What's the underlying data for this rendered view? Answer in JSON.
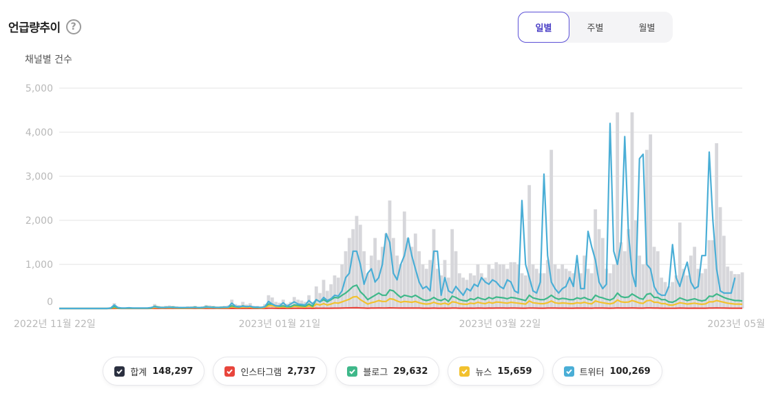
{
  "header": {
    "title": "언급량추이",
    "help_symbol": "?"
  },
  "period_tabs": [
    {
      "label": "일별",
      "active": true
    },
    {
      "label": "주별",
      "active": false
    },
    {
      "label": "월별",
      "active": false
    }
  ],
  "legend": [
    {
      "name": "합계",
      "value": "148,297",
      "color": "#2b3040"
    },
    {
      "name": "인스타그램",
      "value": "2,737",
      "color": "#e8453c"
    },
    {
      "name": "블로그",
      "value": "29,632",
      "color": "#3fb88a"
    },
    {
      "name": "뉴스",
      "value": "15,659",
      "color": "#f2c12e"
    },
    {
      "name": "트위터",
      "value": "100,269",
      "color": "#4aaed6"
    }
  ],
  "chart_data": {
    "type": "line",
    "title": "채널별 건수",
    "ylim": [
      0,
      5000
    ],
    "yticks": [
      0,
      1000,
      2000,
      3000,
      4000,
      5000
    ],
    "ytick_labels": [
      "0",
      "1,000",
      "2,000",
      "3,000",
      "4,000",
      "5,000"
    ],
    "x_labels": [
      "2022년 11월 22일",
      "2023년 01월 21일",
      "2023년 03월 22일",
      "2023년 05월"
    ],
    "x_label_index": [
      0,
      60,
      120,
      180
    ],
    "series": [
      {
        "name": "합계",
        "kind": "bar",
        "color": "#d7d7db",
        "values": [
          0,
          0,
          0,
          0,
          0,
          0,
          0,
          0,
          0,
          0,
          0,
          0,
          0,
          0,
          30,
          120,
          40,
          25,
          20,
          30,
          25,
          20,
          20,
          20,
          20,
          30,
          100,
          60,
          50,
          60,
          70,
          60,
          50,
          40,
          40,
          50,
          50,
          60,
          40,
          50,
          80,
          70,
          60,
          50,
          50,
          60,
          70,
          200,
          100,
          80,
          150,
          90,
          120,
          60,
          60,
          50,
          100,
          300,
          250,
          150,
          130,
          200,
          110,
          150,
          260,
          200,
          180,
          150,
          300,
          150,
          500,
          350,
          650,
          400,
          550,
          750,
          700,
          1000,
          1300,
          1600,
          1800,
          2100,
          1900,
          1300,
          800,
          1200,
          1600,
          1100,
          1400,
          1700,
          2450,
          1600,
          1200,
          1000,
          2200,
          1600,
          1400,
          1700,
          1300,
          1000,
          900,
          1100,
          1800,
          900,
          750,
          1100,
          700,
          1800,
          1300,
          800,
          700,
          650,
          800,
          750,
          1000,
          800,
          700,
          1000,
          900,
          1050,
          1000,
          1000,
          900,
          1050,
          1050,
          1000,
          800,
          750,
          2800,
          1000,
          900,
          800,
          800,
          1100,
          3600,
          1000,
          900,
          1000,
          900,
          850,
          800,
          1000,
          800,
          1200,
          900,
          800,
          2250,
          1800,
          1600,
          900,
          800,
          1000,
          4450,
          1500,
          1300,
          1800,
          4450,
          2000,
          1200,
          1000,
          3600,
          3950,
          1400,
          1300,
          700,
          600,
          500,
          600,
          750,
          1950,
          900,
          750,
          1200,
          1400,
          900,
          800,
          900,
          1550,
          1550,
          3750,
          2300,
          1650,
          950,
          850,
          780,
          780,
          820
        ]
      },
      {
        "name": "트위터",
        "kind": "line",
        "color": "#4aaed6",
        "values": [
          0,
          0,
          0,
          0,
          0,
          0,
          0,
          0,
          0,
          0,
          0,
          0,
          0,
          0,
          10,
          80,
          20,
          10,
          10,
          15,
          10,
          10,
          10,
          10,
          10,
          20,
          40,
          20,
          20,
          20,
          30,
          20,
          20,
          20,
          20,
          20,
          20,
          20,
          20,
          20,
          30,
          30,
          20,
          20,
          20,
          30,
          30,
          120,
          50,
          40,
          50,
          40,
          50,
          30,
          30,
          20,
          40,
          160,
          100,
          60,
          60,
          130,
          50,
          100,
          150,
          100,
          90,
          80,
          180,
          100,
          200,
          150,
          250,
          180,
          220,
          300,
          280,
          400,
          700,
          800,
          1300,
          1300,
          1000,
          550,
          800,
          900,
          600,
          700,
          1000,
          1700,
          1500,
          800,
          650,
          1000,
          1200,
          1600,
          1200,
          900,
          600,
          450,
          500,
          400,
          1300,
          1300,
          300,
          700,
          400,
          350,
          500,
          400,
          300,
          450,
          400,
          550,
          500,
          700,
          600,
          550,
          650,
          600,
          500,
          450,
          650,
          600,
          400,
          350,
          2450,
          1000,
          700,
          400,
          350,
          600,
          3050,
          1200,
          600,
          450,
          350,
          450,
          500,
          700,
          500,
          1200,
          450,
          450,
          1750,
          1400,
          1100,
          600,
          450,
          550,
          4200,
          1300,
          1000,
          1500,
          3900,
          1700,
          800,
          500,
          3400,
          3500,
          1000,
          900,
          500,
          350,
          300,
          300,
          500,
          1450,
          700,
          500,
          800,
          1050,
          600,
          450,
          500,
          1200,
          1200,
          3550,
          2000,
          900,
          400,
          350,
          350,
          350,
          700
        ]
      },
      {
        "name": "블로그",
        "kind": "line",
        "color": "#3fb88a",
        "values": [
          0,
          0,
          0,
          0,
          0,
          0,
          0,
          0,
          0,
          0,
          0,
          0,
          0,
          0,
          5,
          40,
          10,
          5,
          5,
          10,
          5,
          5,
          5,
          5,
          5,
          10,
          50,
          30,
          20,
          25,
          30,
          30,
          20,
          15,
          15,
          20,
          20,
          30,
          15,
          20,
          40,
          30,
          30,
          20,
          25,
          30,
          30,
          60,
          40,
          30,
          60,
          40,
          50,
          20,
          20,
          20,
          40,
          100,
          100,
          60,
          50,
          60,
          40,
          40,
          80,
          70,
          60,
          50,
          100,
          50,
          200,
          150,
          200,
          150,
          200,
          250,
          240,
          300,
          350,
          420,
          500,
          530,
          380,
          300,
          200,
          250,
          300,
          350,
          300,
          300,
          420,
          400,
          320,
          250,
          300,
          280,
          260,
          300,
          250,
          200,
          180,
          200,
          250,
          200,
          180,
          220,
          160,
          280,
          250,
          200,
          180,
          170,
          220,
          200,
          250,
          220,
          200,
          250,
          220,
          260,
          250,
          240,
          220,
          250,
          240,
          220,
          200,
          180,
          300,
          240,
          220,
          200,
          200,
          240,
          300,
          240,
          210,
          230,
          220,
          200,
          200,
          240,
          220,
          250,
          210,
          190,
          300,
          260,
          240,
          210,
          190,
          230,
          350,
          270,
          250,
          260,
          330,
          280,
          230,
          210,
          320,
          340,
          250,
          250,
          200,
          200,
          150,
          140,
          180,
          240,
          210,
          180,
          200,
          220,
          190,
          170,
          190,
          280,
          270,
          330,
          290,
          250,
          220,
          200,
          180,
          180,
          170
        ]
      },
      {
        "name": "뉴스",
        "kind": "line",
        "color": "#f2c12e",
        "values": [
          0,
          0,
          0,
          0,
          0,
          0,
          0,
          0,
          0,
          0,
          0,
          0,
          0,
          0,
          2,
          20,
          5,
          3,
          3,
          5,
          3,
          3,
          3,
          3,
          3,
          5,
          20,
          15,
          10,
          12,
          15,
          12,
          10,
          8,
          8,
          10,
          10,
          15,
          8,
          10,
          20,
          15,
          15,
          10,
          12,
          15,
          15,
          40,
          25,
          20,
          30,
          25,
          30,
          15,
          15,
          10,
          25,
          60,
          60,
          40,
          30,
          40,
          25,
          30,
          50,
          40,
          40,
          30,
          60,
          30,
          100,
          80,
          110,
          80,
          100,
          130,
          120,
          150,
          180,
          210,
          260,
          270,
          200,
          150,
          100,
          130,
          150,
          180,
          160,
          160,
          220,
          210,
          170,
          140,
          160,
          150,
          140,
          160,
          130,
          110,
          100,
          110,
          140,
          110,
          100,
          120,
          90,
          150,
          140,
          110,
          100,
          95,
          120,
          110,
          140,
          120,
          110,
          140,
          120,
          145,
          140,
          130,
          120,
          140,
          130,
          120,
          110,
          100,
          170,
          130,
          120,
          110,
          110,
          130,
          170,
          130,
          115,
          125,
          120,
          110,
          110,
          130,
          120,
          140,
          115,
          105,
          170,
          145,
          130,
          115,
          105,
          125,
          190,
          150,
          140,
          145,
          180,
          155,
          125,
          115,
          175,
          185,
          140,
          140,
          110,
          110,
          80,
          75,
          100,
          130,
          115,
          100,
          110,
          120,
          105,
          95,
          105,
          150,
          150,
          180,
          160,
          140,
          120,
          110,
          100,
          100,
          95
        ]
      },
      {
        "name": "인스타그램",
        "kind": "line",
        "color": "#e8453c",
        "values": [
          0,
          0,
          0,
          0,
          0,
          0,
          0,
          0,
          0,
          0,
          0,
          0,
          0,
          0,
          0,
          2,
          1,
          0,
          0,
          1,
          0,
          0,
          0,
          0,
          0,
          1,
          2,
          1,
          1,
          1,
          1,
          1,
          1,
          1,
          1,
          1,
          1,
          1,
          1,
          1,
          2,
          1,
          1,
          1,
          1,
          1,
          1,
          3,
          2,
          1,
          2,
          2,
          2,
          1,
          1,
          1,
          2,
          4,
          4,
          3,
          2,
          3,
          2,
          2,
          3,
          3,
          3,
          2,
          4,
          2,
          6,
          5,
          7,
          5,
          6,
          8,
          8,
          10,
          12,
          14,
          16,
          17,
          13,
          10,
          7,
          9,
          10,
          12,
          11,
          11,
          14,
          13,
          11,
          9,
          10,
          10,
          9,
          10,
          9,
          7,
          7,
          7,
          9,
          7,
          7,
          8,
          6,
          10,
          9,
          7,
          7,
          6,
          8,
          7,
          9,
          8,
          7,
          9,
          8,
          10,
          9,
          9,
          8,
          9,
          9,
          8,
          7,
          7,
          11,
          9,
          8,
          7,
          7,
          9,
          11,
          9,
          8,
          8,
          8,
          7,
          7,
          9,
          8,
          9,
          8,
          7,
          11,
          10,
          9,
          8,
          7,
          8,
          13,
          10,
          9,
          10,
          12,
          10,
          8,
          8,
          12,
          12,
          9,
          9,
          7,
          7,
          5,
          5,
          7,
          9,
          8,
          7,
          7,
          8,
          7,
          6,
          7,
          10,
          10,
          12,
          11,
          9,
          8,
          7,
          7,
          7,
          6
        ]
      }
    ]
  }
}
